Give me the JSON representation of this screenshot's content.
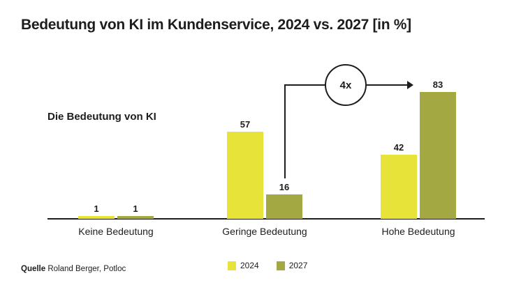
{
  "title": "Bedeutung von KI im Kundenservice, 2024 vs. 2027 [in %]",
  "chart_label": "Die Bedeutung von KI",
  "annotation": {
    "text": "4x"
  },
  "legend": [
    {
      "label": "2024",
      "color": "#e7e338"
    },
    {
      "label": "2027",
      "color": "#a4a842"
    }
  ],
  "source": {
    "label": "Quelle",
    "text": "Roland Berger, Potloc"
  },
  "colors": {
    "series_2024": "#e7e338",
    "series_2027": "#a4a842",
    "text": "#1d1d1b",
    "background": "#ffffff"
  },
  "chart_data": {
    "type": "bar",
    "title": "Bedeutung von KI im Kundenservice, 2024 vs. 2027 [in %]",
    "subtitle": "Die Bedeutung von KI",
    "categories": [
      "Keine Bedeutung",
      "Geringe Bedeutung",
      "Hohe Bedeutung"
    ],
    "series": [
      {
        "name": "2024",
        "color": "#e7e338",
        "values": [
          1,
          57,
          42
        ]
      },
      {
        "name": "2027",
        "color": "#a4a842",
        "values": [
          1,
          16,
          83
        ]
      }
    ],
    "unit": "%",
    "ylim": [
      0,
      100
    ],
    "grid": false,
    "value_labels": true,
    "legend_position": "bottom",
    "annotations": [
      {
        "text": "4x",
        "meaning": "2027 value grows 4x from Geringe Bedeutung (16) to Hohe Bedeutung (83)"
      }
    ],
    "source": "Quelle Roland Berger, Potloc"
  }
}
